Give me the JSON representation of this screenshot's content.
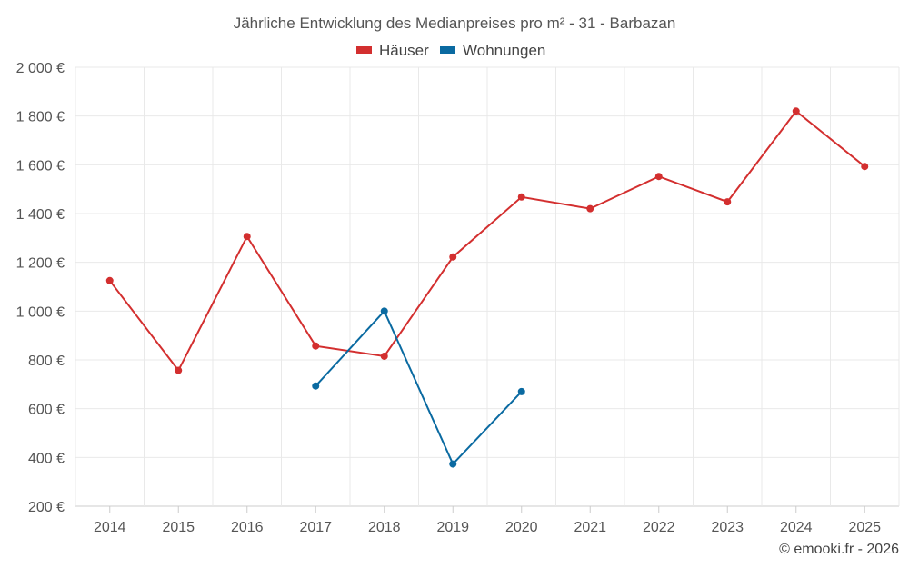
{
  "chart_data": {
    "type": "line",
    "title": "Jährliche Entwicklung des Medianpreises pro m² - 31 - Barbazan",
    "categories": [
      "2014",
      "2015",
      "2016",
      "2017",
      "2018",
      "2019",
      "2020",
      "2021",
      "2022",
      "2023",
      "2024",
      "2025"
    ],
    "series": [
      {
        "name": "Häuser",
        "color": "#d32f2f",
        "values": [
          1125,
          757,
          1306,
          857,
          815,
          1222,
          1468,
          1420,
          1552,
          1448,
          1820,
          1593
        ]
      },
      {
        "name": "Wohnungen",
        "color": "#0a6aa1",
        "values": [
          null,
          null,
          null,
          693,
          1000,
          373,
          670,
          null,
          null,
          null,
          null,
          null
        ]
      }
    ],
    "ylim": [
      200,
      2000
    ],
    "yticks": [
      200,
      400,
      600,
      800,
      1000,
      1200,
      1400,
      1600,
      1800,
      2000
    ],
    "ytick_labels": [
      "200 €",
      "400 €",
      "600 €",
      "800 €",
      "1 000 €",
      "1 200 €",
      "1 400 €",
      "1 600 €",
      "1 800 €",
      "2 000 €"
    ],
    "legend_position": "top-center",
    "grid": true,
    "credit": "© emooki.fr - 2026"
  }
}
